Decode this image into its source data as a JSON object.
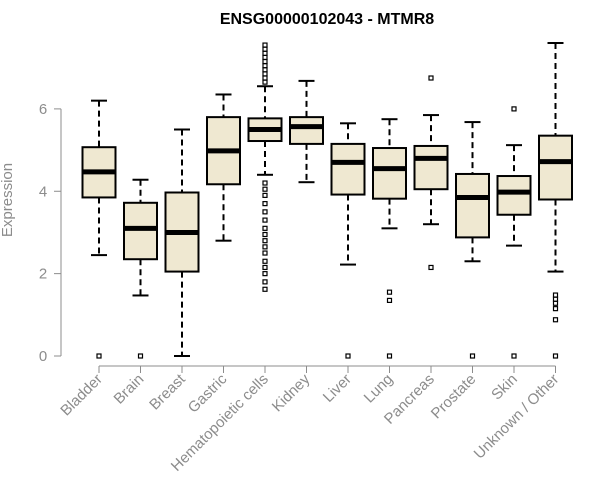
{
  "chart_data": {
    "type": "boxplot",
    "title": "ENSG00000102043 - MTMR8",
    "xlabel": "",
    "ylabel": "Expression",
    "ylim": [
      0,
      7.6
    ],
    "yticks": [
      0,
      2,
      4,
      6
    ],
    "grid": false,
    "legend": "none",
    "box_fill": "#efe8d1",
    "line_color": "#000000",
    "categories": [
      "Bladder",
      "Brain",
      "Breast",
      "Gastric",
      "Hematopoietic cells",
      "Kidney",
      "Liver",
      "Lung",
      "Pancreas",
      "Prostate",
      "Skin",
      "Unknown / Other"
    ],
    "boxes": [
      {
        "category": "Bladder",
        "whisker_low": 2.45,
        "q1": 3.85,
        "median": 4.47,
        "q3": 5.07,
        "whisker_high": 6.2,
        "outliers": [
          0
        ]
      },
      {
        "category": "Brain",
        "whisker_low": 1.47,
        "q1": 2.35,
        "median": 3.1,
        "q3": 3.72,
        "whisker_high": 4.28,
        "outliers": [
          0
        ]
      },
      {
        "category": "Breast",
        "whisker_low": 0,
        "q1": 2.05,
        "median": 3.0,
        "q3": 3.97,
        "whisker_high": 5.5,
        "outliers": []
      },
      {
        "category": "Gastric",
        "whisker_low": 2.8,
        "q1": 4.17,
        "median": 4.98,
        "q3": 5.8,
        "whisker_high": 6.35,
        "outliers": []
      },
      {
        "category": "Hematopoietic cells",
        "whisker_low": 4.4,
        "q1": 5.22,
        "median": 5.5,
        "q3": 5.77,
        "whisker_high": 6.55,
        "outliers": [
          1.62,
          1.8,
          2.0,
          2.15,
          2.3,
          2.5,
          2.65,
          2.8,
          2.95,
          3.1,
          3.3,
          3.5,
          3.7,
          3.9,
          4.05,
          4.2,
          6.65,
          6.75,
          6.85,
          6.95,
          7.05,
          7.15,
          7.25,
          7.35,
          7.45,
          7.55
        ]
      },
      {
        "category": "Kidney",
        "whisker_low": 4.22,
        "q1": 5.15,
        "median": 5.57,
        "q3": 5.8,
        "whisker_high": 6.68,
        "outliers": []
      },
      {
        "category": "Liver",
        "whisker_low": 2.22,
        "q1": 3.92,
        "median": 4.7,
        "q3": 5.15,
        "whisker_high": 5.65,
        "outliers": [
          0
        ]
      },
      {
        "category": "Lung",
        "whisker_low": 3.1,
        "q1": 3.82,
        "median": 4.55,
        "q3": 5.05,
        "whisker_high": 5.75,
        "outliers": [
          0,
          1.35,
          1.55
        ]
      },
      {
        "category": "Pancreas",
        "whisker_low": 3.2,
        "q1": 4.05,
        "median": 4.8,
        "q3": 5.1,
        "whisker_high": 5.85,
        "outliers": [
          2.15,
          6.75
        ]
      },
      {
        "category": "Prostate",
        "whisker_low": 2.3,
        "q1": 2.88,
        "median": 3.85,
        "q3": 4.42,
        "whisker_high": 5.68,
        "outliers": [
          0
        ]
      },
      {
        "category": "Skin",
        "whisker_low": 2.68,
        "q1": 3.43,
        "median": 3.98,
        "q3": 4.37,
        "whisker_high": 5.12,
        "outliers": [
          0,
          6.0
        ]
      },
      {
        "category": "Unknown / Other",
        "whisker_low": 2.05,
        "q1": 3.8,
        "median": 4.72,
        "q3": 5.35,
        "whisker_high": 7.6,
        "outliers": [
          0,
          0.88,
          1.15,
          1.28,
          1.38,
          1.48
        ]
      }
    ]
  }
}
